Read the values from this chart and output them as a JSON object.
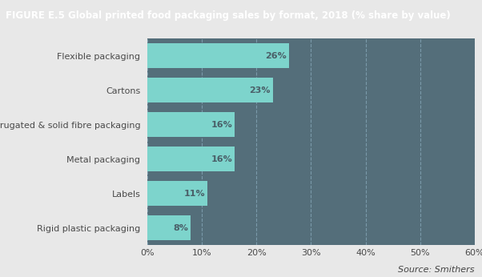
{
  "title": "FIGURE E.5 Global printed food packaging sales by format, 2018 (% share by value)",
  "categories": [
    "Rigid plastic packaging",
    "Labels",
    "Metal packaging",
    "Corrugated & solid fibre packaging",
    "Cartons",
    "Flexible packaging"
  ],
  "values": [
    8,
    11,
    16,
    16,
    23,
    26
  ],
  "bar_color": "#7dd4cc",
  "chart_bg_color": "#546e7a",
  "title_bg_color": "#111111",
  "title_text_color": "#ffffff",
  "fig_bg_color": "#e8e8e8",
  "xlim": [
    0,
    60
  ],
  "xticks": [
    0,
    10,
    20,
    30,
    40,
    50,
    60
  ],
  "source_text": "Source: Smithers",
  "value_label_color": "#4a5f68",
  "ytick_color": "#4a4a4a",
  "xtick_color": "#4a4a4a",
  "grid_color": "#7a9aaa",
  "title_fontsize": 8.5,
  "bar_height": 0.72,
  "bar_label_fontsize": 8,
  "ytick_fontsize": 8,
  "xtick_fontsize": 8
}
